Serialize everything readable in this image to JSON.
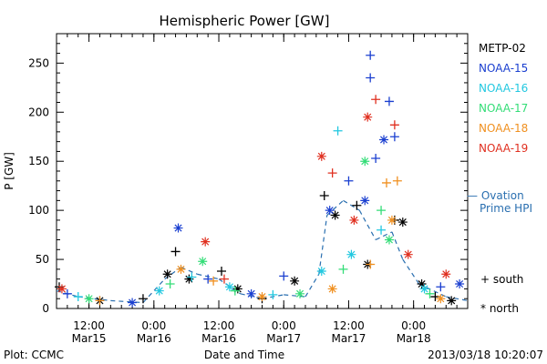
{
  "chart_data": {
    "type": "scatter",
    "title": "Hemispheric Power [GW]",
    "ylabel": "P [GW]",
    "xlabel": "Date and Time",
    "ylim": [
      0,
      280
    ],
    "yticks": [
      0,
      50,
      100,
      150,
      200,
      250
    ],
    "xlim": [
      "2013-03-15 06:00",
      "2013-03-18 10:00"
    ],
    "xticks": [
      {
        "time": "2013-03-15 12:00",
        "label": [
          "12:00",
          "Mar15"
        ]
      },
      {
        "time": "2013-03-16 00:00",
        "label": [
          "0:00",
          "Mar16"
        ]
      },
      {
        "time": "2013-03-16 12:00",
        "label": [
          "12:00",
          "Mar16"
        ]
      },
      {
        "time": "2013-03-17 00:00",
        "label": [
          "0:00",
          "Mar17"
        ]
      },
      {
        "time": "2013-03-17 12:00",
        "label": [
          "12:00",
          "Mar17"
        ]
      },
      {
        "time": "2013-03-18 00:00",
        "label": [
          "0:00",
          "Mar18"
        ]
      }
    ],
    "legend_placement": "right",
    "series": [
      {
        "name": "METP-02",
        "color": "#000000",
        "points": [
          {
            "t": "2013-03-15 06:30",
            "v": 22,
            "h": "south"
          },
          {
            "t": "2013-03-15 14:00",
            "v": 8,
            "h": "north"
          },
          {
            "t": "2013-03-15 22:00",
            "v": 10,
            "h": "south"
          },
          {
            "t": "2013-03-16 02:30",
            "v": 35,
            "h": "north"
          },
          {
            "t": "2013-03-16 04:00",
            "v": 58,
            "h": "south"
          },
          {
            "t": "2013-03-16 06:30",
            "v": 30,
            "h": "north"
          },
          {
            "t": "2013-03-16 12:30",
            "v": 38,
            "h": "south"
          },
          {
            "t": "2013-03-16 15:30",
            "v": 20,
            "h": "north"
          },
          {
            "t": "2013-03-16 20:00",
            "v": 10,
            "h": "south"
          },
          {
            "t": "2013-03-17 02:00",
            "v": 28,
            "h": "north"
          },
          {
            "t": "2013-03-17 07:30",
            "v": 115,
            "h": "south"
          },
          {
            "t": "2013-03-17 09:30",
            "v": 95,
            "h": "north"
          },
          {
            "t": "2013-03-17 13:30",
            "v": 105,
            "h": "south"
          },
          {
            "t": "2013-03-17 15:30",
            "v": 45,
            "h": "north"
          },
          {
            "t": "2013-03-17 20:30",
            "v": 90,
            "h": "south"
          },
          {
            "t": "2013-03-17 22:00",
            "v": 88,
            "h": "north"
          },
          {
            "t": "2013-03-18 01:30",
            "v": 25,
            "h": "north"
          },
          {
            "t": "2013-03-18 04:00",
            "v": 12,
            "h": "south"
          },
          {
            "t": "2013-03-18 07:00",
            "v": 8,
            "h": "north"
          }
        ]
      },
      {
        "name": "NOAA-15",
        "color": "#1a3fd0",
        "points": [
          {
            "t": "2013-03-15 08:00",
            "v": 15,
            "h": "south"
          },
          {
            "t": "2013-03-15 20:00",
            "v": 6,
            "h": "north"
          },
          {
            "t": "2013-03-16 04:30",
            "v": 82,
            "h": "north"
          },
          {
            "t": "2013-03-16 10:00",
            "v": 30,
            "h": "south"
          },
          {
            "t": "2013-03-16 18:00",
            "v": 15,
            "h": "north"
          },
          {
            "t": "2013-03-17 00:00",
            "v": 33,
            "h": "south"
          },
          {
            "t": "2013-03-17 08:30",
            "v": 100,
            "h": "north"
          },
          {
            "t": "2013-03-17 12:00",
            "v": 130,
            "h": "south"
          },
          {
            "t": "2013-03-17 16:00",
            "v": 258,
            "h": "south"
          },
          {
            "t": "2013-03-17 16:00",
            "v": 235,
            "h": "south"
          },
          {
            "t": "2013-03-17 18:30",
            "v": 172,
            "h": "north"
          },
          {
            "t": "2013-03-17 19:30",
            "v": 211,
            "h": "south"
          },
          {
            "t": "2013-03-17 20:30",
            "v": 175,
            "h": "south"
          },
          {
            "t": "2013-03-17 17:00",
            "v": 153,
            "h": "south"
          },
          {
            "t": "2013-03-17 15:00",
            "v": 110,
            "h": "north"
          },
          {
            "t": "2013-03-18 05:00",
            "v": 22,
            "h": "south"
          },
          {
            "t": "2013-03-18 08:30",
            "v": 25,
            "h": "north"
          }
        ]
      },
      {
        "name": "NOAA-16",
        "color": "#22c8e0",
        "points": [
          {
            "t": "2013-03-15 10:00",
            "v": 12,
            "h": "south"
          },
          {
            "t": "2013-03-16 01:00",
            "v": 18,
            "h": "north"
          },
          {
            "t": "2013-03-16 07:00",
            "v": 32,
            "h": "south"
          },
          {
            "t": "2013-03-16 14:00",
            "v": 22,
            "h": "north"
          },
          {
            "t": "2013-03-16 22:00",
            "v": 14,
            "h": "south"
          },
          {
            "t": "2013-03-17 07:00",
            "v": 38,
            "h": "north"
          },
          {
            "t": "2013-03-17 10:00",
            "v": 181,
            "h": "south"
          },
          {
            "t": "2013-03-17 12:30",
            "v": 55,
            "h": "north"
          },
          {
            "t": "2013-03-17 18:00",
            "v": 80,
            "h": "south"
          },
          {
            "t": "2013-03-18 02:00",
            "v": 20,
            "h": "north"
          }
        ]
      },
      {
        "name": "NOAA-17",
        "color": "#33dd77",
        "points": [
          {
            "t": "2013-03-15 12:00",
            "v": 10,
            "h": "north"
          },
          {
            "t": "2013-03-16 03:00",
            "v": 25,
            "h": "south"
          },
          {
            "t": "2013-03-16 09:00",
            "v": 48,
            "h": "north"
          },
          {
            "t": "2013-03-16 15:00",
            "v": 18,
            "h": "south"
          },
          {
            "t": "2013-03-17 03:00",
            "v": 15,
            "h": "north"
          },
          {
            "t": "2013-03-17 11:00",
            "v": 40,
            "h": "south"
          },
          {
            "t": "2013-03-17 15:00",
            "v": 150,
            "h": "north"
          },
          {
            "t": "2013-03-17 18:00",
            "v": 100,
            "h": "south"
          },
          {
            "t": "2013-03-17 19:30",
            "v": 70,
            "h": "north"
          },
          {
            "t": "2013-03-18 03:00",
            "v": 15,
            "h": "south"
          }
        ]
      },
      {
        "name": "NOAA-18",
        "color": "#f09020",
        "points": [
          {
            "t": "2013-03-15 14:00",
            "v": 8,
            "h": "south"
          },
          {
            "t": "2013-03-16 05:00",
            "v": 40,
            "h": "north"
          },
          {
            "t": "2013-03-16 11:00",
            "v": 28,
            "h": "south"
          },
          {
            "t": "2013-03-16 20:00",
            "v": 12,
            "h": "north"
          },
          {
            "t": "2013-03-17 09:00",
            "v": 20,
            "h": "north"
          },
          {
            "t": "2013-03-17 16:00",
            "v": 45,
            "h": "south"
          },
          {
            "t": "2013-03-17 19:00",
            "v": 128,
            "h": "south"
          },
          {
            "t": "2013-03-17 21:00",
            "v": 130,
            "h": "south"
          },
          {
            "t": "2013-03-17 20:00",
            "v": 90,
            "h": "north"
          },
          {
            "t": "2013-03-18 05:00",
            "v": 10,
            "h": "north"
          }
        ]
      },
      {
        "name": "NOAA-19",
        "color": "#e03020",
        "points": [
          {
            "t": "2013-03-15 07:00",
            "v": 20,
            "h": "north"
          },
          {
            "t": "2013-03-16 09:30",
            "v": 68,
            "h": "north"
          },
          {
            "t": "2013-03-16 13:00",
            "v": 30,
            "h": "south"
          },
          {
            "t": "2013-03-17 07:00",
            "v": 155,
            "h": "north"
          },
          {
            "t": "2013-03-17 09:00",
            "v": 138,
            "h": "south"
          },
          {
            "t": "2013-03-17 15:30",
            "v": 195,
            "h": "north"
          },
          {
            "t": "2013-03-17 17:00",
            "v": 213,
            "h": "south"
          },
          {
            "t": "2013-03-17 20:30",
            "v": 187,
            "h": "south"
          },
          {
            "t": "2013-03-17 13:00",
            "v": 90,
            "h": "north"
          },
          {
            "t": "2013-03-17 23:00",
            "v": 55,
            "h": "north"
          },
          {
            "t": "2013-03-18 06:00",
            "v": 35,
            "h": "north"
          }
        ]
      }
    ],
    "ovation": {
      "label": "— Ovation Prime HPI",
      "color": "#2a6fb0",
      "points": [
        {
          "t": "2013-03-15 06:00",
          "v": 18
        },
        {
          "t": "2013-03-15 10:00",
          "v": 12
        },
        {
          "t": "2013-03-15 16:00",
          "v": 8
        },
        {
          "t": "2013-03-15 22:00",
          "v": 6
        },
        {
          "t": "2013-03-16 02:00",
          "v": 30
        },
        {
          "t": "2013-03-16 05:00",
          "v": 42
        },
        {
          "t": "2013-03-16 08:00",
          "v": 35
        },
        {
          "t": "2013-03-16 12:00",
          "v": 30
        },
        {
          "t": "2013-03-16 16:00",
          "v": 15
        },
        {
          "t": "2013-03-16 20:00",
          "v": 10
        },
        {
          "t": "2013-03-17 00:00",
          "v": 14
        },
        {
          "t": "2013-03-17 04:00",
          "v": 12
        },
        {
          "t": "2013-03-17 06:30",
          "v": 35
        },
        {
          "t": "2013-03-17 08:00",
          "v": 95
        },
        {
          "t": "2013-03-17 11:00",
          "v": 110
        },
        {
          "t": "2013-03-17 14:00",
          "v": 100
        },
        {
          "t": "2013-03-17 17:00",
          "v": 70
        },
        {
          "t": "2013-03-17 20:00",
          "v": 78
        },
        {
          "t": "2013-03-17 22:00",
          "v": 50
        },
        {
          "t": "2013-03-18 01:00",
          "v": 25
        },
        {
          "t": "2013-03-18 06:00",
          "v": 12
        },
        {
          "t": "2013-03-18 10:00",
          "v": 8
        }
      ]
    },
    "symbols": {
      "south": "+ south",
      "north": "* north"
    }
  },
  "footer": {
    "left": "Plot: CCMC",
    "right": "2013/03/18 10:20:07"
  }
}
